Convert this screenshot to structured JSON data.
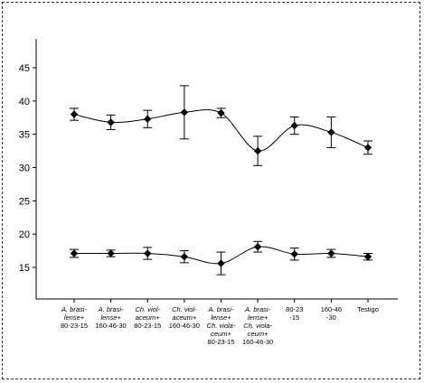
{
  "chart_data": {
    "type": "line",
    "title": "",
    "xlabel": "",
    "ylabel": "",
    "ylim": [
      10,
      50
    ],
    "yticks": [
      15,
      20,
      25,
      30,
      35,
      40,
      45
    ],
    "grid": false,
    "legend": "none",
    "categories": [
      {
        "lines": [
          "A. brasi-",
          "lense+",
          "80-23-15"
        ],
        "italic_lines": [
          0,
          1
        ]
      },
      {
        "lines": [
          "A. brasi-",
          "lense+",
          "160-46-30"
        ],
        "italic_lines": [
          0,
          1
        ]
      },
      {
        "lines": [
          "Ch. viol-",
          "aceum+",
          "80-23-15"
        ],
        "italic_lines": [
          0,
          1
        ]
      },
      {
        "lines": [
          "Ch. viol-",
          "aceum+",
          "160-46-30"
        ],
        "italic_lines": [
          0,
          1
        ]
      },
      {
        "lines": [
          "A. brasi-",
          "lense+",
          "Ch. viola-",
          "ceum+",
          "80-23-15"
        ],
        "italic_lines": [
          0,
          1,
          2,
          3
        ]
      },
      {
        "lines": [
          "A. brasi-",
          "lense+",
          "Ch. viola-",
          "ceum+",
          "160-46-30"
        ],
        "italic_lines": [
          0,
          1,
          2,
          3
        ]
      },
      {
        "lines": [
          "80-23",
          "-15"
        ],
        "italic_lines": []
      },
      {
        "lines": [
          "160-46",
          "-30"
        ],
        "italic_lines": []
      },
      {
        "lines": [
          "Testigo"
        ],
        "italic_lines": []
      }
    ],
    "series": [
      {
        "values": [
          38.0,
          36.8,
          37.3,
          38.3,
          38.2,
          32.5,
          36.3,
          35.3,
          33.0
        ],
        "errors": [
          0.9,
          1.1,
          1.3,
          4.0,
          0.7,
          2.2,
          1.3,
          2.3,
          1.0
        ],
        "color": "#000000"
      },
      {
        "values": [
          17.1,
          17.1,
          17.1,
          16.6,
          15.6,
          18.1,
          17.0,
          17.1,
          16.6
        ],
        "errors": [
          0.6,
          0.5,
          0.9,
          0.9,
          1.7,
          0.8,
          0.9,
          0.6,
          0.5
        ],
        "color": "#000000"
      }
    ]
  }
}
